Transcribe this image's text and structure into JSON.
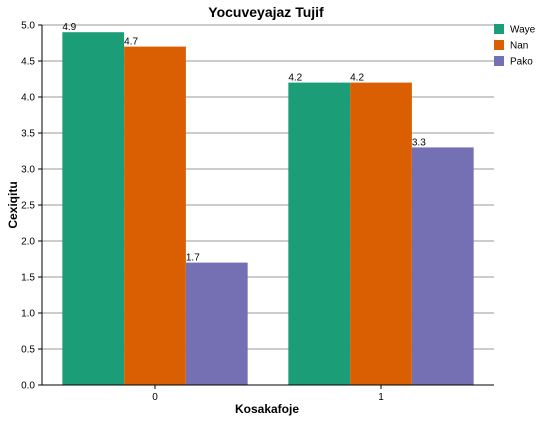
{
  "chart_data": {
    "type": "bar",
    "title": "Yocuveyajaz Tujif",
    "xlabel": "Kosakafoje",
    "ylabel": "Cexiqitu",
    "categories": [
      "0",
      "1"
    ],
    "ylim": [
      0,
      5
    ],
    "yticks": [
      "0.0",
      "0.5",
      "1.0",
      "1.5",
      "2.0",
      "2.5",
      "3.0",
      "3.5",
      "4.0",
      "4.5",
      "5.0"
    ],
    "grid": true,
    "legend_position": "top-right",
    "series": [
      {
        "name": "Waye",
        "color": "#1b9e77",
        "values": [
          4.9,
          4.2
        ],
        "labels": [
          "4.9",
          "4.2"
        ]
      },
      {
        "name": "Nan",
        "color": "#d95f02",
        "values": [
          4.7,
          4.2
        ],
        "labels": [
          "4.7",
          "4.2"
        ]
      },
      {
        "name": "Pako",
        "color": "#7570b3",
        "values": [
          1.7,
          3.3
        ],
        "labels": [
          "1.7",
          "3.3"
        ]
      }
    ]
  }
}
